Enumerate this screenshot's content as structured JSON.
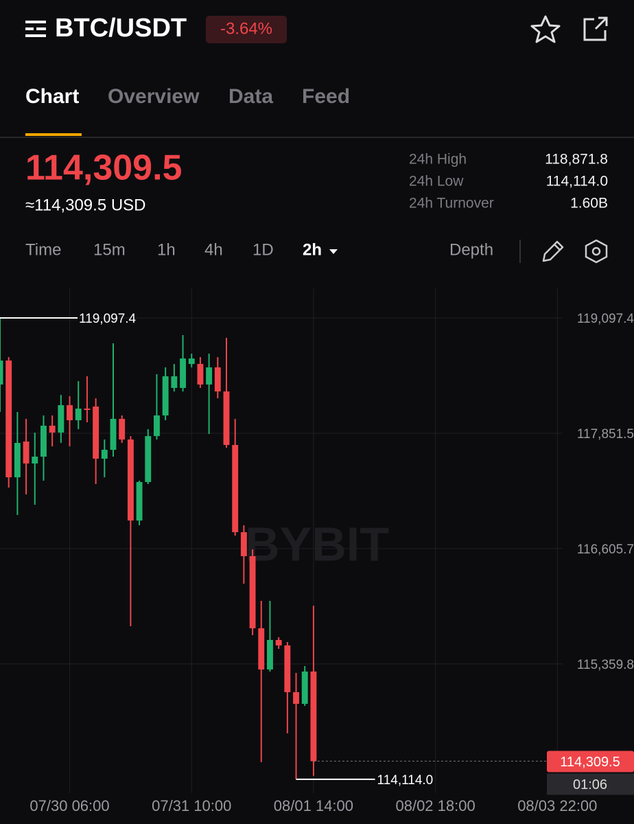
{
  "header": {
    "symbol": "BTC/USDT",
    "change": "-3.64%"
  },
  "tabs": [
    "Chart",
    "Overview",
    "Data",
    "Feed"
  ],
  "price": {
    "last": "114,309.5",
    "usd": "≈114,309.5 USD"
  },
  "stats": [
    {
      "label": "24h High",
      "value": "118,871.8"
    },
    {
      "label": "24h Low",
      "value": "114,114.0"
    },
    {
      "label": "24h Turnover",
      "value": "1.60B"
    }
  ],
  "intervals": [
    "Time",
    "15m",
    "1h",
    "4h",
    "1D",
    "2h"
  ],
  "depth": "Depth",
  "chart_data": {
    "type": "candlestick",
    "up_color": "#20b26c",
    "down_color": "#ef454a",
    "candles": [
      {
        "open": 118378,
        "high": 119097.4,
        "low": 118081,
        "close": 118637
      },
      {
        "open": 118637,
        "high": 118674,
        "low": 117265,
        "close": 117376
      },
      {
        "open": 117376,
        "high": 118081,
        "low": 116969,
        "close": 117747
      },
      {
        "open": 117762,
        "high": 118007,
        "low": 117191,
        "close": 117525
      },
      {
        "open": 117525,
        "high": 117859,
        "low": 117080,
        "close": 117599
      },
      {
        "open": 117599,
        "high": 118044,
        "low": 117339,
        "close": 117933
      },
      {
        "open": 117933,
        "high": 118044,
        "low": 117710,
        "close": 117859
      },
      {
        "open": 117859,
        "high": 118266,
        "low": 117747,
        "close": 118155
      },
      {
        "open": 118155,
        "high": 118252,
        "low": 117710,
        "close": 117992
      },
      {
        "open": 117992,
        "high": 118415,
        "low": 117896,
        "close": 118118
      },
      {
        "open": 118118,
        "high": 118467,
        "low": 117970,
        "close": 118103
      },
      {
        "open": 118140,
        "high": 118229,
        "low": 117302,
        "close": 117577
      },
      {
        "open": 117577,
        "high": 117784,
        "low": 117376,
        "close": 117673
      },
      {
        "open": 117673,
        "high": 118823,
        "low": 117599,
        "close": 118007
      },
      {
        "open": 118007,
        "high": 118044,
        "low": 117747,
        "close": 117784
      },
      {
        "open": 117784,
        "high": 117821,
        "low": 115767,
        "close": 116909
      },
      {
        "open": 116909,
        "high": 117339,
        "low": 116857,
        "close": 117325
      },
      {
        "open": 117325,
        "high": 117896,
        "low": 117302,
        "close": 117821
      },
      {
        "open": 117821,
        "high": 118489,
        "low": 117784,
        "close": 118044
      },
      {
        "open": 118044,
        "high": 118563,
        "low": 117992,
        "close": 118467
      },
      {
        "open": 118341,
        "high": 118600,
        "low": 118303,
        "close": 118467
      },
      {
        "open": 118341,
        "high": 118912,
        "low": 118303,
        "close": 118659
      },
      {
        "open": 118600,
        "high": 118711,
        "low": 118563,
        "close": 118659
      },
      {
        "open": 118600,
        "high": 118674,
        "low": 118341,
        "close": 118378
      },
      {
        "open": 118378,
        "high": 118711,
        "low": 117844,
        "close": 118563
      },
      {
        "open": 118563,
        "high": 118674,
        "low": 118229,
        "close": 118303
      },
      {
        "open": 118303,
        "high": 118882,
        "low": 117695,
        "close": 117725
      },
      {
        "open": 117725,
        "high": 118007,
        "low": 116746,
        "close": 116783
      },
      {
        "open": 116783,
        "high": 116857,
        "low": 116227,
        "close": 116524
      },
      {
        "open": 116524,
        "high": 116598,
        "low": 115671,
        "close": 115745
      },
      {
        "open": 115745,
        "high": 116042,
        "low": 114300,
        "close": 115300
      },
      {
        "open": 115300,
        "high": 116042,
        "low": 115278,
        "close": 115619
      },
      {
        "open": 115619,
        "high": 115649,
        "low": 115523,
        "close": 115560
      },
      {
        "open": 115560,
        "high": 115597,
        "low": 114610,
        "close": 115055
      },
      {
        "open": 115055,
        "high": 115263,
        "low": 114114.0,
        "close": 114929
      },
      {
        "open": 114929,
        "high": 115337,
        "low": 114907,
        "close": 115278
      },
      {
        "open": 115278,
        "high": 115990,
        "low": 114151,
        "close": 114309.5
      }
    ],
    "ylim": [
      113965,
      119416
    ],
    "yticks": [
      {
        "value": 119097.4,
        "label": "119,097.4"
      },
      {
        "value": 117851.5,
        "label": "117,851.5"
      },
      {
        "value": 116605.7,
        "label": "116,605.7"
      },
      {
        "value": 115359.8,
        "label": "115,359.8"
      }
    ],
    "xlim": [
      0,
      72.8
    ],
    "xticks": [
      {
        "value": 8,
        "label": "07/30 06:00"
      },
      {
        "value": 22,
        "label": "07/31 10:00"
      },
      {
        "value": 36,
        "label": "08/01 14:00"
      },
      {
        "value": 50,
        "label": "08/02 18:00"
      },
      {
        "value": 64,
        "label": "08/03 22:00"
      }
    ],
    "grid": true,
    "high_mark": {
      "value": 119097.4,
      "label": "119,097.4"
    },
    "low_mark": {
      "value": 114114.0,
      "label": "114,114.0"
    },
    "last_mark": {
      "value": 114309.5,
      "label": "114,309.5"
    },
    "countdown": "01:06",
    "watermark": "BYBIT"
  }
}
